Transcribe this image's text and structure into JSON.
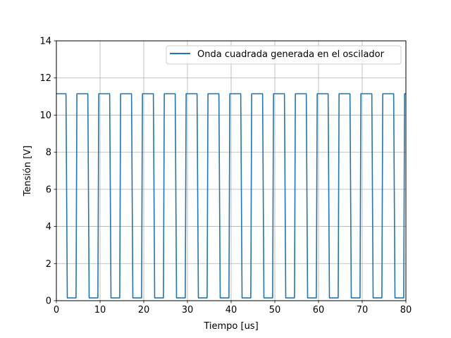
{
  "chart_data": {
    "type": "line",
    "title": "",
    "xlabel": "Tiempo [us]",
    "ylabel": "Tensión [V]",
    "xlim": [
      0,
      80
    ],
    "ylim": [
      0,
      14
    ],
    "x_ticks": [
      "0",
      "10",
      "20",
      "30",
      "40",
      "50",
      "60",
      "70",
      "80"
    ],
    "y_ticks": [
      "0",
      "2",
      "4",
      "6",
      "8",
      "10",
      "12",
      "14"
    ],
    "grid": true,
    "legend_position": "top-right",
    "series": [
      {
        "name": "Onda cuadrada generada en el oscilador",
        "color": "#1f77b4",
        "x": [
          0,
          2.2,
          2.5,
          4.5,
          4.7,
          7.2,
          7.5,
          9.5,
          9.7,
          12.2,
          12.5,
          14.5,
          14.7,
          17.2,
          17.5,
          19.5,
          19.7,
          22.2,
          22.5,
          24.5,
          24.7,
          27.2,
          27.5,
          29.5,
          29.7,
          32.2,
          32.5,
          34.5,
          34.7,
          37.2,
          37.5,
          39.5,
          39.7,
          42.2,
          42.5,
          44.5,
          44.7,
          47.2,
          47.5,
          49.5,
          49.7,
          52.2,
          52.5,
          54.5,
          54.7,
          57.2,
          57.5,
          59.5,
          59.7,
          62.2,
          62.5,
          64.5,
          64.7,
          67.2,
          67.5,
          69.5,
          69.7,
          72.2,
          72.5,
          74.5,
          74.7,
          77.2,
          77.5,
          79.5,
          79.7,
          80
        ],
        "y": [
          11.15,
          11.15,
          0.15,
          0.15,
          11.15,
          11.15,
          0.15,
          0.15,
          11.15,
          11.15,
          0.15,
          0.15,
          11.15,
          11.15,
          0.15,
          0.15,
          11.15,
          11.15,
          0.15,
          0.15,
          11.15,
          11.15,
          0.15,
          0.15,
          11.15,
          11.15,
          0.15,
          0.15,
          11.15,
          11.15,
          0.15,
          0.15,
          11.15,
          11.15,
          0.15,
          0.15,
          11.15,
          11.15,
          0.15,
          0.15,
          11.15,
          11.15,
          0.15,
          0.15,
          11.15,
          11.15,
          0.15,
          0.15,
          11.15,
          11.15,
          0.15,
          0.15,
          11.15,
          11.15,
          0.15,
          0.15,
          11.15,
          11.15,
          0.15,
          0.15,
          11.15,
          11.15,
          0.15,
          0.15,
          11.15,
          11.15
        ]
      }
    ]
  }
}
